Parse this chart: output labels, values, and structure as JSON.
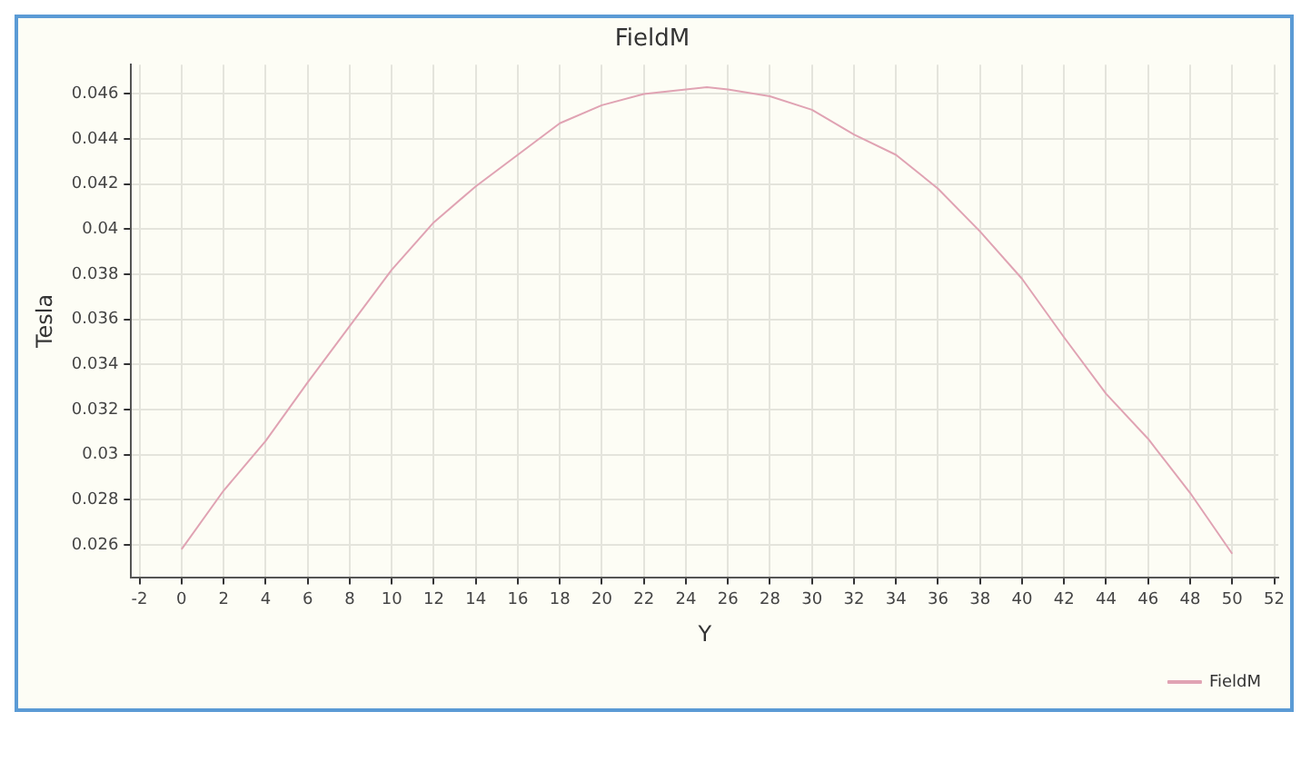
{
  "chart_data": {
    "type": "line",
    "title": "FieldM",
    "xlabel": "Y",
    "ylabel": "Tesla",
    "x": [
      0,
      2,
      4,
      6,
      8,
      10,
      12,
      14,
      16,
      18,
      20,
      22,
      24,
      25,
      26,
      28,
      30,
      32,
      34,
      36,
      38,
      40,
      42,
      44,
      46,
      48,
      50
    ],
    "series": [
      {
        "name": "FieldM",
        "color": "#e0a3b3",
        "values": [
          0.0258,
          0.0284,
          0.0306,
          0.0332,
          0.0357,
          0.0382,
          0.0403,
          0.0419,
          0.0433,
          0.0447,
          0.0455,
          0.046,
          0.0462,
          0.0463,
          0.0462,
          0.0459,
          0.0453,
          0.0442,
          0.0433,
          0.0418,
          0.0399,
          0.0378,
          0.0352,
          0.0327,
          0.0307,
          0.0283,
          0.0256
        ]
      }
    ],
    "xlim": [
      -2.4,
      52.2
    ],
    "xticks": [
      -2,
      0,
      2,
      4,
      6,
      8,
      10,
      12,
      14,
      16,
      18,
      20,
      22,
      24,
      26,
      28,
      30,
      32,
      34,
      36,
      38,
      40,
      42,
      44,
      46,
      48,
      50,
      52
    ],
    "ylim": [
      0.02456,
      0.0473
    ],
    "yticks": [
      0.026,
      0.028,
      0.03,
      0.032,
      0.034,
      0.036,
      0.038,
      0.04,
      0.042,
      0.044,
      0.046
    ],
    "grid": true,
    "legend": "bottom right",
    "marker": "none",
    "line_style": "solid"
  }
}
